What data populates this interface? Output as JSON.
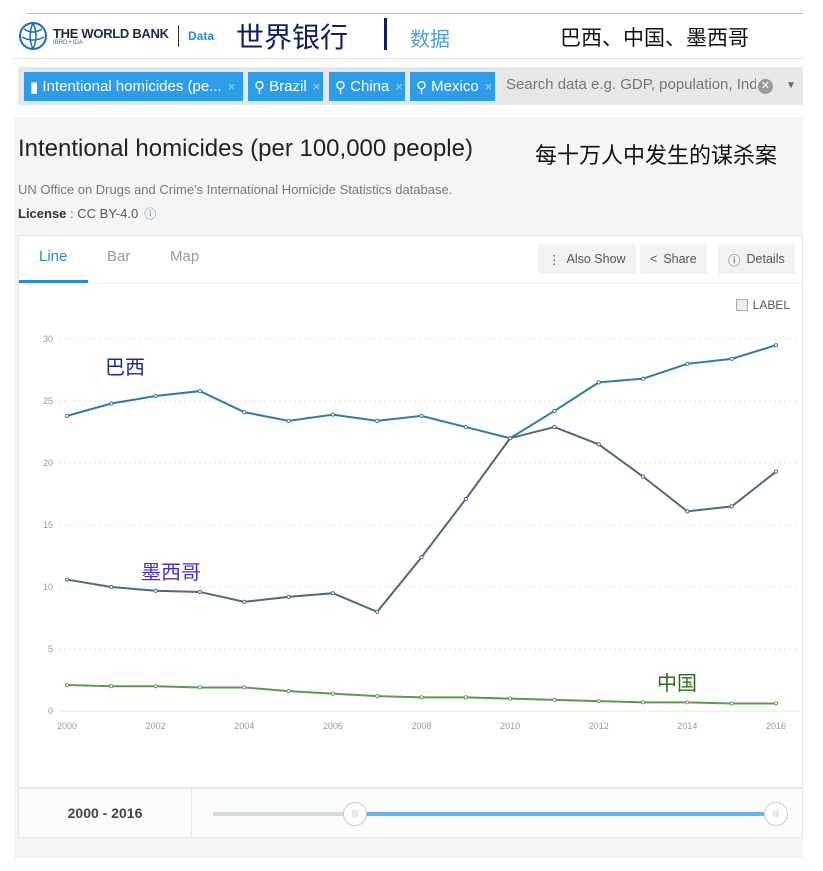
{
  "header": {
    "logo_main": "THE WORLD BANK",
    "logo_sub": "IBRD • IDA",
    "data_link": "Data",
    "annotation_wb": "世界银行",
    "annotation_data": "数据"
  },
  "filters": {
    "chips": [
      {
        "icon": "bar-chart-icon",
        "label": "Intentional homicides (pe..."
      },
      {
        "icon": "map-pin-icon",
        "label": "Brazil"
      },
      {
        "icon": "map-pin-icon",
        "label": "China"
      },
      {
        "icon": "map-pin-icon",
        "label": "Mexico"
      }
    ],
    "remove": "×",
    "search_placeholder": "Search data e.g. GDP, population, Indonesia",
    "annotation": "巴西、中国、墨西哥"
  },
  "indicator": {
    "title": "Intentional homicides (per 100,000 people)",
    "annotation": "每十万人中发生的谋杀案",
    "source": "UN Office on Drugs and Crime's International Homicide Statistics database.",
    "license_label": "License",
    "license_value": " : CC BY-4.0"
  },
  "tabs": [
    {
      "label": "Line",
      "active": true
    },
    {
      "label": "Bar"
    },
    {
      "label": "Map"
    }
  ],
  "actions": {
    "also_show": "Also Show",
    "share": "Share",
    "details": "Details",
    "label_toggle": "LABEL"
  },
  "colors": {
    "accent": "#2a8bd0",
    "brazil": "#2e7bab",
    "mexico": "#566584",
    "china": "#5e9a52"
  },
  "chart_data": {
    "type": "line",
    "x": [
      2000,
      2001,
      2002,
      2003,
      2004,
      2005,
      2006,
      2007,
      2008,
      2009,
      2010,
      2011,
      2012,
      2013,
      2014,
      2015,
      2016
    ],
    "xticks": [
      "2000",
      "2002",
      "2004",
      "2006",
      "2008",
      "2010",
      "2012",
      "2014",
      "2016"
    ],
    "yticks": [
      "0",
      "5",
      "10",
      "15",
      "20",
      "25",
      "30"
    ],
    "ylim": [
      0,
      30
    ],
    "grid": true,
    "series": [
      {
        "key": "brazil",
        "annotation": "巴西",
        "values": [
          23.8,
          24.8,
          25.4,
          25.8,
          24.1,
          23.4,
          23.9,
          23.4,
          23.8,
          22.9,
          22.0,
          24.2,
          26.5,
          26.8,
          28.0,
          28.4,
          29.5
        ]
      },
      {
        "key": "mexico",
        "annotation": "墨西哥",
        "values": [
          10.6,
          10.0,
          9.7,
          9.6,
          8.8,
          9.2,
          9.5,
          8.0,
          12.4,
          17.1,
          22.0,
          22.9,
          21.5,
          18.9,
          16.1,
          16.5,
          19.3
        ]
      },
      {
        "key": "china",
        "annotation": "中国",
        "values": [
          2.1,
          2.0,
          2.0,
          1.9,
          1.9,
          1.6,
          1.4,
          1.2,
          1.1,
          1.1,
          1.0,
          0.9,
          0.8,
          0.7,
          0.7,
          0.6,
          0.6
        ]
      }
    ]
  },
  "slider": {
    "range_label": "2000 - 2016",
    "start": 2000,
    "end": 2016
  }
}
